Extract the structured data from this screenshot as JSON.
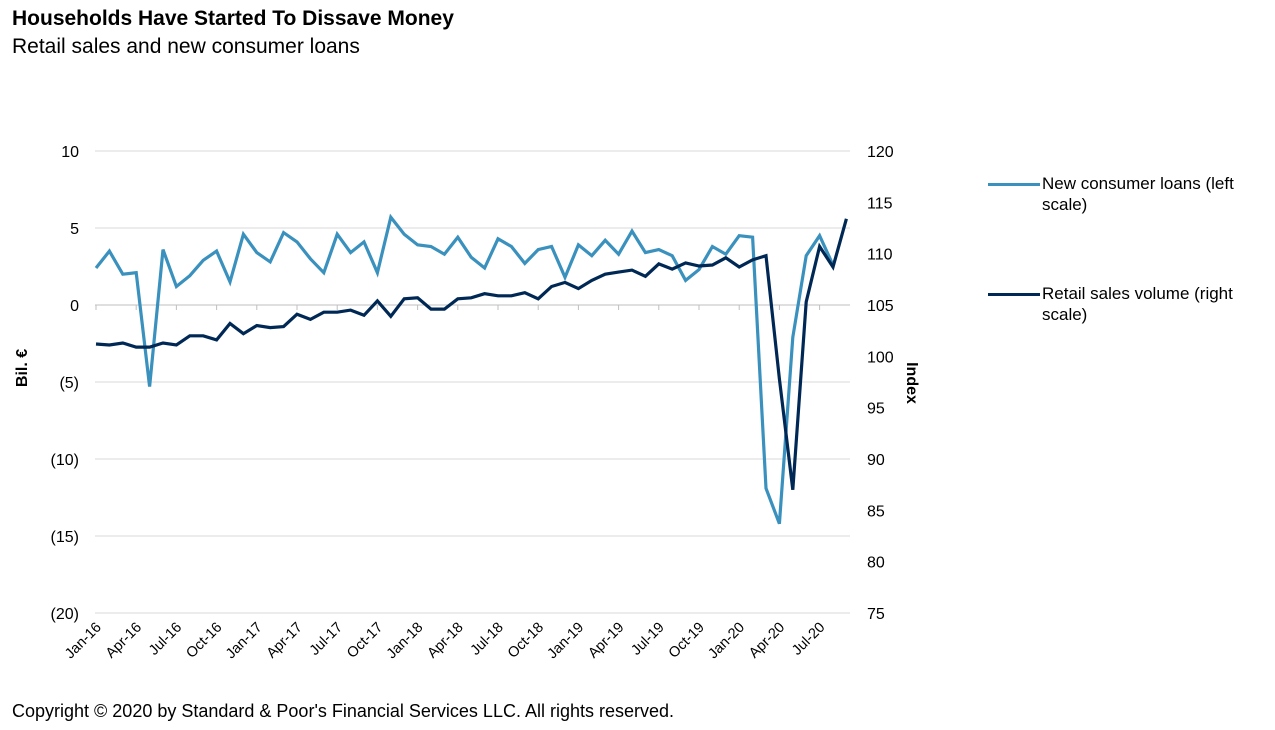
{
  "header": {
    "title": "Households Have Started To Dissave Money",
    "subtitle": "Retail sales and new consumer loans"
  },
  "footer": {
    "copyright": "Copyright © 2020 by Standard & Poor's Financial Services LLC. All rights reserved."
  },
  "colors": {
    "loans": "#3a91bd",
    "retail": "#002855",
    "grid": "#d9d9d9"
  },
  "chart_data": {
    "type": "line",
    "title": "Households Have Started To Dissave Money",
    "subtitle": "Retail sales and new consumer loans",
    "ylabel": "Bil. €",
    "y2label": "Index",
    "ylim": [
      -20,
      10
    ],
    "y2lim": [
      75,
      120
    ],
    "yticks": [
      10,
      5,
      0,
      -5,
      -10,
      -15,
      -20
    ],
    "ytick_labels": [
      "10",
      "5",
      "0",
      "(5)",
      "(10)",
      "(15)",
      "(20)"
    ],
    "y2ticks": [
      120,
      115,
      110,
      105,
      100,
      95,
      90,
      85,
      80,
      75
    ],
    "y2tick_labels": [
      "120",
      "115",
      "110",
      "105",
      "100",
      "95",
      "90",
      "85",
      "80",
      "75"
    ],
    "grid": true,
    "legend_position": "right",
    "x": [
      "Jan-16",
      "Feb-16",
      "Mar-16",
      "Apr-16",
      "May-16",
      "Jun-16",
      "Jul-16",
      "Aug-16",
      "Sep-16",
      "Oct-16",
      "Nov-16",
      "Dec-16",
      "Jan-17",
      "Feb-17",
      "Mar-17",
      "Apr-17",
      "May-17",
      "Jun-17",
      "Jul-17",
      "Aug-17",
      "Sep-17",
      "Oct-17",
      "Nov-17",
      "Dec-17",
      "Jan-18",
      "Feb-18",
      "Mar-18",
      "Apr-18",
      "May-18",
      "Jun-18",
      "Jul-18",
      "Aug-18",
      "Sep-18",
      "Oct-18",
      "Nov-18",
      "Dec-18",
      "Jan-19",
      "Feb-19",
      "Mar-19",
      "Apr-19",
      "May-19",
      "Jun-19",
      "Jul-19",
      "Aug-19",
      "Sep-19",
      "Oct-19",
      "Nov-19",
      "Dec-19",
      "Jan-20",
      "Feb-20",
      "Mar-20",
      "Apr-20",
      "May-20",
      "Jun-20",
      "Jul-20",
      "Aug-20",
      "Sep-20"
    ],
    "x_tick_labels": [
      "Jan-16",
      "Apr-16",
      "Jul-16",
      "Oct-16",
      "Jan-17",
      "Apr-17",
      "Jul-17",
      "Oct-17",
      "Jan-18",
      "Apr-18",
      "Jul-18",
      "Oct-18",
      "Jan-19",
      "Apr-19",
      "Jul-19",
      "Oct-19",
      "Jan-20",
      "Apr-20",
      "Jul-20"
    ],
    "series": [
      {
        "name": "New consumer loans (left scale)",
        "axis": "left",
        "values": [
          2.4,
          3.5,
          2.0,
          2.1,
          -5.3,
          3.6,
          1.2,
          1.9,
          2.9,
          3.5,
          1.5,
          4.6,
          3.4,
          2.8,
          4.7,
          4.1,
          3.0,
          2.1,
          4.6,
          3.4,
          4.1,
          2.1,
          5.7,
          4.6,
          3.9,
          3.8,
          3.3,
          4.4,
          3.1,
          2.4,
          4.3,
          3.8,
          2.7,
          3.6,
          3.8,
          1.8,
          3.9,
          3.2,
          4.2,
          3.3,
          4.8,
          3.4,
          3.6,
          3.2,
          1.6,
          2.3,
          3.8,
          3.3,
          4.5,
          4.4,
          -11.9,
          -14.2,
          -2.1,
          3.2,
          4.5,
          2.6,
          null
        ]
      },
      {
        "name": "Retail sales volume (right scale)",
        "axis": "right",
        "values": [
          101.2,
          101.1,
          101.3,
          100.9,
          100.9,
          101.3,
          101.1,
          102.0,
          102.0,
          101.6,
          103.2,
          102.2,
          103.0,
          102.8,
          102.9,
          104.1,
          103.6,
          104.3,
          104.3,
          104.5,
          104.0,
          105.4,
          103.9,
          105.6,
          105.7,
          104.6,
          104.6,
          105.6,
          105.7,
          106.1,
          105.9,
          105.9,
          106.2,
          105.6,
          106.8,
          107.2,
          106.6,
          107.4,
          108.0,
          108.2,
          108.4,
          107.8,
          109.0,
          108.5,
          109.1,
          108.8,
          108.9,
          109.6,
          108.7,
          109.4,
          109.8,
          97.8,
          87.0,
          105.3,
          110.7,
          108.7,
          113.4
        ]
      }
    ]
  }
}
